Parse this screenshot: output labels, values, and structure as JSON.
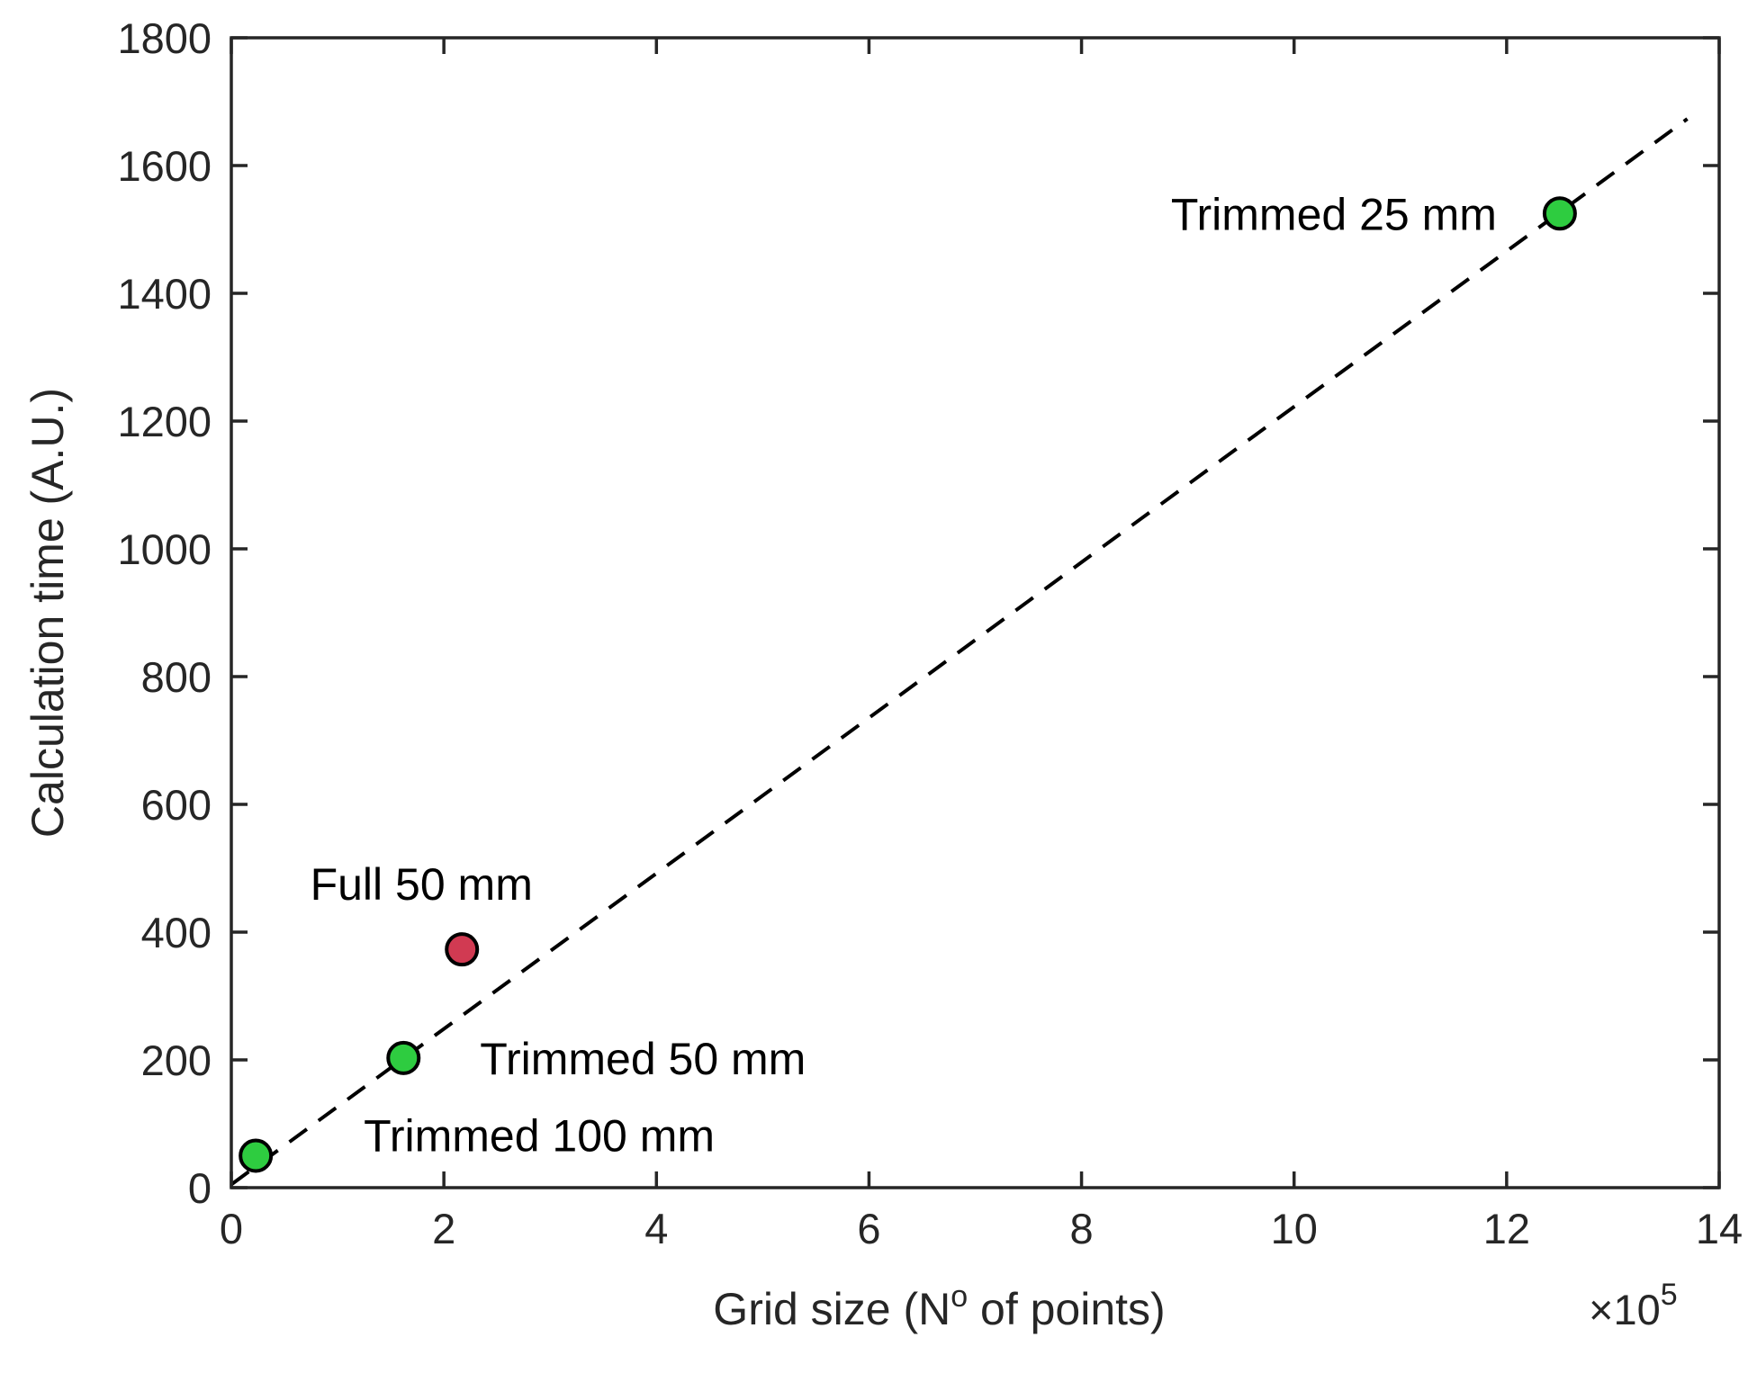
{
  "chart_data": {
    "type": "scatter",
    "xlabel": "Grid size (Nº of points)",
    "xlabel_parts": {
      "before": "Grid size (N",
      "superscript": "o",
      "after": " of points)"
    },
    "ylabel": "Calculation time (A.U.)",
    "x_exponent": {
      "multiplier": "×10",
      "power": "5"
    },
    "xlim": [
      0,
      14
    ],
    "ylim": [
      0,
      1800
    ],
    "xticks": [
      0,
      2,
      4,
      6,
      8,
      10,
      12,
      14
    ],
    "yticks": [
      0,
      200,
      400,
      600,
      800,
      1000,
      1200,
      1400,
      1600,
      1800
    ],
    "xtick_labels": [
      "0",
      "2",
      "4",
      "6",
      "8",
      "10",
      "12",
      "14"
    ],
    "ytick_labels": [
      "0",
      "200",
      "400",
      "600",
      "800",
      "1000",
      "1200",
      "1400",
      "1600",
      "1800"
    ],
    "grid": false,
    "points": [
      {
        "label": "Trimmed 100 mm",
        "x": 0.23,
        "y": 50,
        "color": "#2ecc40",
        "label_side": "right"
      },
      {
        "label": "Trimmed 50 mm",
        "x": 1.62,
        "y": 203,
        "color": "#2ecc40",
        "label_side": "right"
      },
      {
        "label": "Full 50 mm",
        "x": 2.17,
        "y": 373,
        "color": "#d13a52",
        "label_side": "above"
      },
      {
        "label": "Trimmed 25 mm",
        "x": 12.5,
        "y": 1525,
        "color": "#2ecc40",
        "label_side": "left"
      }
    ],
    "fit_line": {
      "style": "dashed",
      "color": "#000000",
      "x": [
        0,
        13.7
      ],
      "y": [
        5,
        1673
      ]
    }
  }
}
